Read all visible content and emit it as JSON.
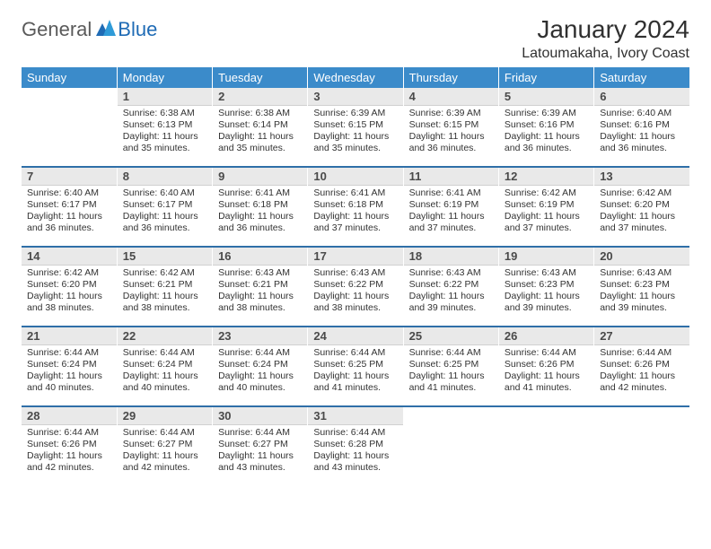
{
  "brand": {
    "part1": "General",
    "part2": "Blue",
    "text_color": "#5a5a5a",
    "accent_color": "#1f6bb5"
  },
  "title": "January 2024",
  "location": "Latoumakaha, Ivory Coast",
  "colors": {
    "header_bg": "#3b8bca",
    "header_text": "#ffffff",
    "daynum_bg": "#e9e9e9",
    "row_separator": "#2f6fa8",
    "body_text": "#333333"
  },
  "weekdays": [
    "Sunday",
    "Monday",
    "Tuesday",
    "Wednesday",
    "Thursday",
    "Friday",
    "Saturday"
  ],
  "weeks": [
    [
      {
        "n": "",
        "sunrise": "",
        "sunset": "",
        "daylight": ""
      },
      {
        "n": "1",
        "sunrise": "Sunrise: 6:38 AM",
        "sunset": "Sunset: 6:13 PM",
        "daylight": "Daylight: 11 hours and 35 minutes."
      },
      {
        "n": "2",
        "sunrise": "Sunrise: 6:38 AM",
        "sunset": "Sunset: 6:14 PM",
        "daylight": "Daylight: 11 hours and 35 minutes."
      },
      {
        "n": "3",
        "sunrise": "Sunrise: 6:39 AM",
        "sunset": "Sunset: 6:15 PM",
        "daylight": "Daylight: 11 hours and 35 minutes."
      },
      {
        "n": "4",
        "sunrise": "Sunrise: 6:39 AM",
        "sunset": "Sunset: 6:15 PM",
        "daylight": "Daylight: 11 hours and 36 minutes."
      },
      {
        "n": "5",
        "sunrise": "Sunrise: 6:39 AM",
        "sunset": "Sunset: 6:16 PM",
        "daylight": "Daylight: 11 hours and 36 minutes."
      },
      {
        "n": "6",
        "sunrise": "Sunrise: 6:40 AM",
        "sunset": "Sunset: 6:16 PM",
        "daylight": "Daylight: 11 hours and 36 minutes."
      }
    ],
    [
      {
        "n": "7",
        "sunrise": "Sunrise: 6:40 AM",
        "sunset": "Sunset: 6:17 PM",
        "daylight": "Daylight: 11 hours and 36 minutes."
      },
      {
        "n": "8",
        "sunrise": "Sunrise: 6:40 AM",
        "sunset": "Sunset: 6:17 PM",
        "daylight": "Daylight: 11 hours and 36 minutes."
      },
      {
        "n": "9",
        "sunrise": "Sunrise: 6:41 AM",
        "sunset": "Sunset: 6:18 PM",
        "daylight": "Daylight: 11 hours and 36 minutes."
      },
      {
        "n": "10",
        "sunrise": "Sunrise: 6:41 AM",
        "sunset": "Sunset: 6:18 PM",
        "daylight": "Daylight: 11 hours and 37 minutes."
      },
      {
        "n": "11",
        "sunrise": "Sunrise: 6:41 AM",
        "sunset": "Sunset: 6:19 PM",
        "daylight": "Daylight: 11 hours and 37 minutes."
      },
      {
        "n": "12",
        "sunrise": "Sunrise: 6:42 AM",
        "sunset": "Sunset: 6:19 PM",
        "daylight": "Daylight: 11 hours and 37 minutes."
      },
      {
        "n": "13",
        "sunrise": "Sunrise: 6:42 AM",
        "sunset": "Sunset: 6:20 PM",
        "daylight": "Daylight: 11 hours and 37 minutes."
      }
    ],
    [
      {
        "n": "14",
        "sunrise": "Sunrise: 6:42 AM",
        "sunset": "Sunset: 6:20 PM",
        "daylight": "Daylight: 11 hours and 38 minutes."
      },
      {
        "n": "15",
        "sunrise": "Sunrise: 6:42 AM",
        "sunset": "Sunset: 6:21 PM",
        "daylight": "Daylight: 11 hours and 38 minutes."
      },
      {
        "n": "16",
        "sunrise": "Sunrise: 6:43 AM",
        "sunset": "Sunset: 6:21 PM",
        "daylight": "Daylight: 11 hours and 38 minutes."
      },
      {
        "n": "17",
        "sunrise": "Sunrise: 6:43 AM",
        "sunset": "Sunset: 6:22 PM",
        "daylight": "Daylight: 11 hours and 38 minutes."
      },
      {
        "n": "18",
        "sunrise": "Sunrise: 6:43 AM",
        "sunset": "Sunset: 6:22 PM",
        "daylight": "Daylight: 11 hours and 39 minutes."
      },
      {
        "n": "19",
        "sunrise": "Sunrise: 6:43 AM",
        "sunset": "Sunset: 6:23 PM",
        "daylight": "Daylight: 11 hours and 39 minutes."
      },
      {
        "n": "20",
        "sunrise": "Sunrise: 6:43 AM",
        "sunset": "Sunset: 6:23 PM",
        "daylight": "Daylight: 11 hours and 39 minutes."
      }
    ],
    [
      {
        "n": "21",
        "sunrise": "Sunrise: 6:44 AM",
        "sunset": "Sunset: 6:24 PM",
        "daylight": "Daylight: 11 hours and 40 minutes."
      },
      {
        "n": "22",
        "sunrise": "Sunrise: 6:44 AM",
        "sunset": "Sunset: 6:24 PM",
        "daylight": "Daylight: 11 hours and 40 minutes."
      },
      {
        "n": "23",
        "sunrise": "Sunrise: 6:44 AM",
        "sunset": "Sunset: 6:24 PM",
        "daylight": "Daylight: 11 hours and 40 minutes."
      },
      {
        "n": "24",
        "sunrise": "Sunrise: 6:44 AM",
        "sunset": "Sunset: 6:25 PM",
        "daylight": "Daylight: 11 hours and 41 minutes."
      },
      {
        "n": "25",
        "sunrise": "Sunrise: 6:44 AM",
        "sunset": "Sunset: 6:25 PM",
        "daylight": "Daylight: 11 hours and 41 minutes."
      },
      {
        "n": "26",
        "sunrise": "Sunrise: 6:44 AM",
        "sunset": "Sunset: 6:26 PM",
        "daylight": "Daylight: 11 hours and 41 minutes."
      },
      {
        "n": "27",
        "sunrise": "Sunrise: 6:44 AM",
        "sunset": "Sunset: 6:26 PM",
        "daylight": "Daylight: 11 hours and 42 minutes."
      }
    ],
    [
      {
        "n": "28",
        "sunrise": "Sunrise: 6:44 AM",
        "sunset": "Sunset: 6:26 PM",
        "daylight": "Daylight: 11 hours and 42 minutes."
      },
      {
        "n": "29",
        "sunrise": "Sunrise: 6:44 AM",
        "sunset": "Sunset: 6:27 PM",
        "daylight": "Daylight: 11 hours and 42 minutes."
      },
      {
        "n": "30",
        "sunrise": "Sunrise: 6:44 AM",
        "sunset": "Sunset: 6:27 PM",
        "daylight": "Daylight: 11 hours and 43 minutes."
      },
      {
        "n": "31",
        "sunrise": "Sunrise: 6:44 AM",
        "sunset": "Sunset: 6:28 PM",
        "daylight": "Daylight: 11 hours and 43 minutes."
      },
      {
        "n": "",
        "sunrise": "",
        "sunset": "",
        "daylight": ""
      },
      {
        "n": "",
        "sunrise": "",
        "sunset": "",
        "daylight": ""
      },
      {
        "n": "",
        "sunrise": "",
        "sunset": "",
        "daylight": ""
      }
    ]
  ]
}
